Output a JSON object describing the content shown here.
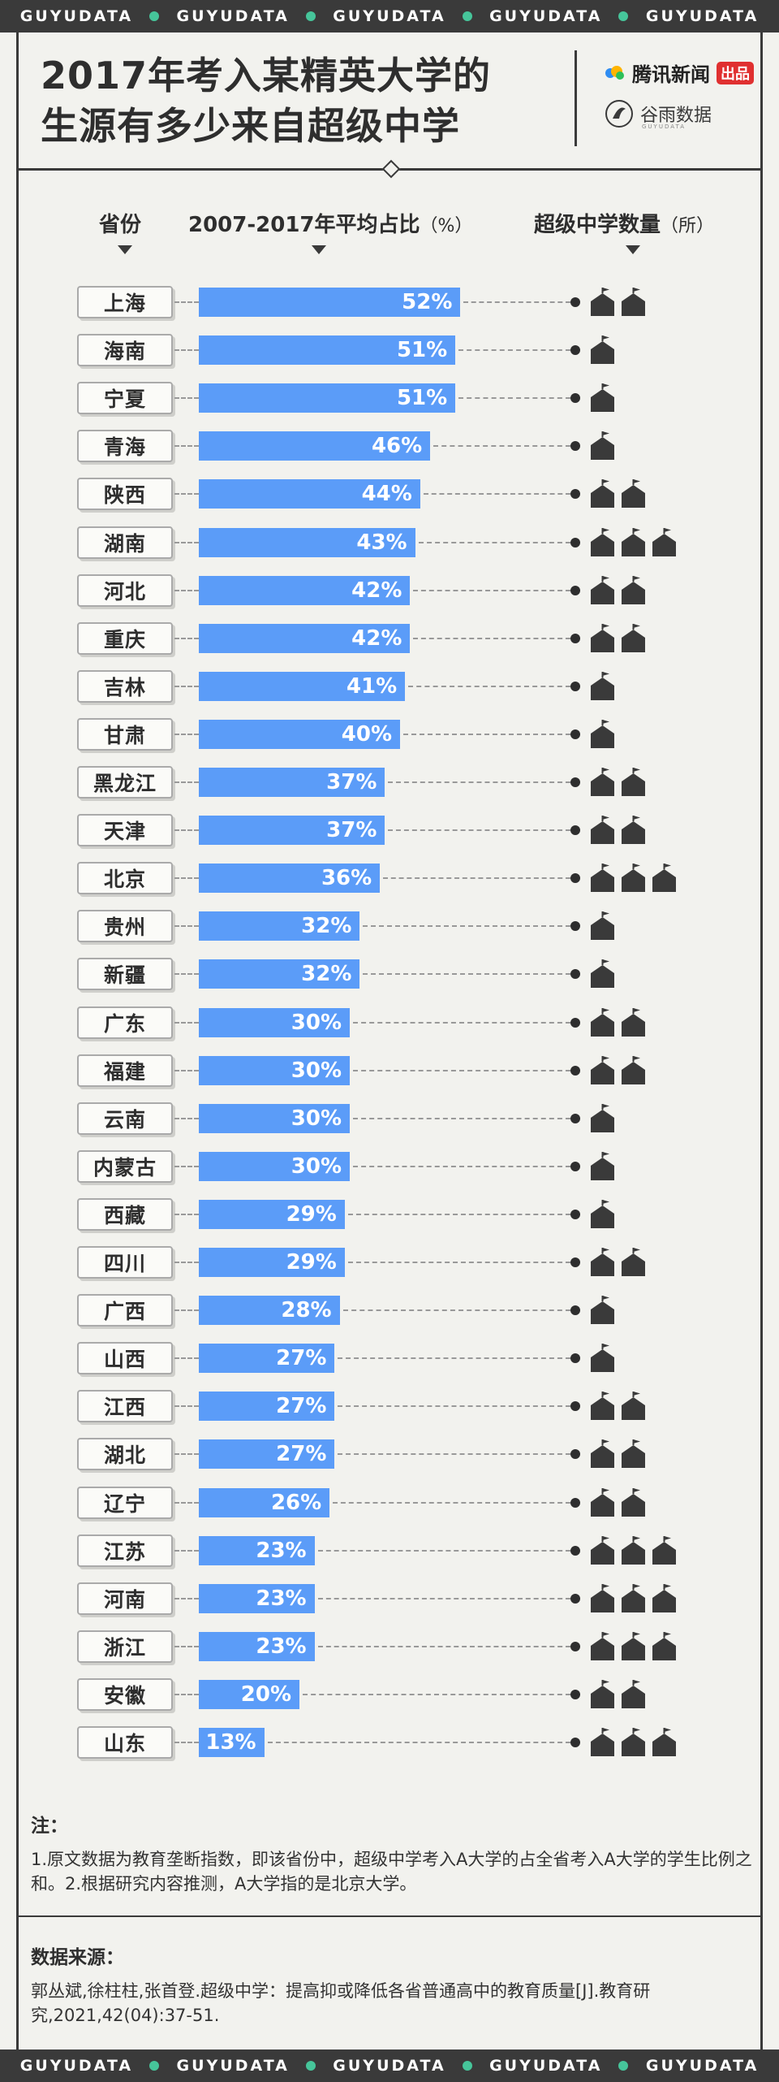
{
  "brand": {
    "band_word": "GUYUDATA",
    "band_count": 5
  },
  "title": {
    "line1": "2017年考入某精英大学的",
    "line2": "生源有多少来自超级中学"
  },
  "logos": {
    "tencent": "腾讯新闻",
    "tencent_badge": "出品",
    "guyu": "谷雨数据",
    "guyu_sub": "GUYUDATA"
  },
  "headers": {
    "province": "省份",
    "share": "2007-2017年平均占比",
    "share_unit": "（%）",
    "schools": "超级中学数量",
    "schools_unit": "（所）"
  },
  "chart_data": {
    "type": "bar",
    "title": "2017年考入某精英大学的生源有多少来自超级中学",
    "xlabel": "2007-2017年平均占比（%）",
    "ylabel": "省份",
    "secondary_label": "超级中学数量（所）",
    "xlim": [
      0,
      100
    ],
    "categories": [
      "上海",
      "海南",
      "宁夏",
      "青海",
      "陕西",
      "湖南",
      "河北",
      "重庆",
      "吉林",
      "甘肃",
      "黑龙江",
      "天津",
      "北京",
      "贵州",
      "新疆",
      "广东",
      "福建",
      "云南",
      "内蒙古",
      "西藏",
      "四川",
      "广西",
      "山西",
      "江西",
      "湖北",
      "辽宁",
      "江苏",
      "河南",
      "浙江",
      "安徽",
      "山东"
    ],
    "values": [
      52,
      51,
      51,
      46,
      44,
      43,
      42,
      42,
      41,
      40,
      37,
      37,
      36,
      32,
      32,
      30,
      30,
      30,
      30,
      29,
      29,
      28,
      27,
      27,
      27,
      26,
      23,
      23,
      23,
      20,
      13
    ],
    "value_labels": [
      "52%",
      "51%",
      "51%",
      "46%",
      "44%",
      "43%",
      "42%",
      "42%",
      "41%",
      "40%",
      "37%",
      "37%",
      "36%",
      "32%",
      "32%",
      "30%",
      "30%",
      "30%",
      "30%",
      "29%",
      "29%",
      "28%",
      "27%",
      "27%",
      "27%",
      "26%",
      "23%",
      "23%",
      "23%",
      "20%",
      "13%"
    ],
    "schools": [
      2,
      1,
      1,
      1,
      2,
      3,
      2,
      2,
      1,
      1,
      2,
      2,
      3,
      1,
      1,
      2,
      2,
      1,
      1,
      1,
      2,
      1,
      1,
      2,
      2,
      2,
      3,
      3,
      3,
      2,
      3
    ],
    "bar_color": "#5b9cf8",
    "icon_color": "#3a3a3a",
    "grid": false
  },
  "notes": {
    "heading": "注：",
    "text": "1.原文数据为教育垄断指数，即该省份中，超级中学考入A大学的占全省考入A大学的学生比例之和。2.根据研究内容推测，A大学指的是北京大学。"
  },
  "source": {
    "heading": "数据来源：",
    "text": "郭丛斌,徐柱柱,张首登.超级中学：提高抑或降低各省普通高中的教育质量[J].教育研究,2021,42(04):37-51."
  }
}
